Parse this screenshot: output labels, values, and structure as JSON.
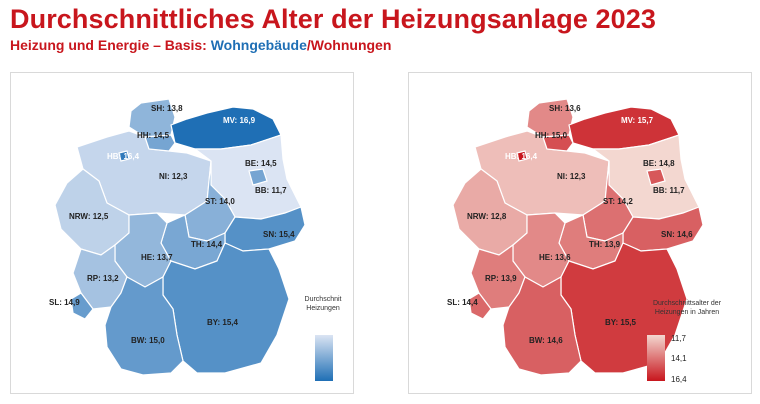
{
  "header": {
    "title": "Durchschnittliches Alter der Heizungsanlage 2023",
    "subtitle_part1": "Heizung und Energie – Basis: ",
    "subtitle_part2": "Wohngebäude",
    "subtitle_part3": "/Wohnungen"
  },
  "colors": {
    "title_red": "#c8161d",
    "blue_dark": "#1f6fb5",
    "blue_light": "#dbe4f3",
    "red_dark": "#c8161d",
    "red_light": "#f3d7d0"
  },
  "map_blue": {
    "basis": "Wohngebäude",
    "legend_title": "Durchschnit\nHeizungen",
    "regions": [
      {
        "code": "SH",
        "label": "SH: 13,8",
        "value": 13.8
      },
      {
        "code": "MV",
        "label": "MV: 16,9",
        "value": 16.9
      },
      {
        "code": "HH",
        "label": "HH: 14,5",
        "value": 14.5
      },
      {
        "code": "HB",
        "label": "HB: 16,4",
        "value": 16.4
      },
      {
        "code": "BE",
        "label": "BE: 14,5",
        "value": 14.5
      },
      {
        "code": "NI",
        "label": "NI: 12,3",
        "value": 12.3
      },
      {
        "code": "BB",
        "label": "BB: 11,7",
        "value": 11.7
      },
      {
        "code": "ST",
        "label": "ST: 14,0",
        "value": 14.0
      },
      {
        "code": "NRW",
        "label": "NRW: 12,5",
        "value": 12.5
      },
      {
        "code": "SN",
        "label": "SN: 15,4",
        "value": 15.4
      },
      {
        "code": "TH",
        "label": "TH: 14,4",
        "value": 14.4
      },
      {
        "code": "HE",
        "label": "HE: 13,7",
        "value": 13.7
      },
      {
        "code": "RP",
        "label": "RP: 13,2",
        "value": 13.2
      },
      {
        "code": "SL",
        "label": "SL: 14,9",
        "value": 14.9
      },
      {
        "code": "BY",
        "label": "BY: 15,4",
        "value": 15.4
      },
      {
        "code": "BW",
        "label": "BW: 15,0",
        "value": 15.0
      }
    ]
  },
  "map_red": {
    "basis": "Wohnungen",
    "legend_title": "Durchschnittsalter der\nHeizungen in Jahren",
    "legend_ticks": [
      "11,7",
      "14,1",
      "16,4"
    ],
    "regions": [
      {
        "code": "SH",
        "label": "SH: 13,6",
        "value": 13.6
      },
      {
        "code": "MV",
        "label": "MV: 15,7",
        "value": 15.7
      },
      {
        "code": "HH",
        "label": "HH: 15,0",
        "value": 15.0
      },
      {
        "code": "HB",
        "label": "HB: 16,4",
        "value": 16.4
      },
      {
        "code": "BE",
        "label": "BE: 14,8",
        "value": 14.8
      },
      {
        "code": "NI",
        "label": "NI: 12,3",
        "value": 12.3
      },
      {
        "code": "BB",
        "label": "BB: 11,7",
        "value": 11.7
      },
      {
        "code": "ST",
        "label": "ST: 14,2",
        "value": 14.2
      },
      {
        "code": "NRW",
        "label": "NRW: 12,8",
        "value": 12.8
      },
      {
        "code": "SN",
        "label": "SN: 14,6",
        "value": 14.6
      },
      {
        "code": "TH",
        "label": "TH: 13,9",
        "value": 13.9
      },
      {
        "code": "HE",
        "label": "HE: 13,6",
        "value": 13.6
      },
      {
        "code": "RP",
        "label": "RP: 13,9",
        "value": 13.9
      },
      {
        "code": "SL",
        "label": "SL: 14,4",
        "value": 14.4
      },
      {
        "code": "BY",
        "label": "BY: 15,5",
        "value": 15.5
      },
      {
        "code": "BW",
        "label": "BW: 14,6",
        "value": 14.6
      }
    ]
  }
}
